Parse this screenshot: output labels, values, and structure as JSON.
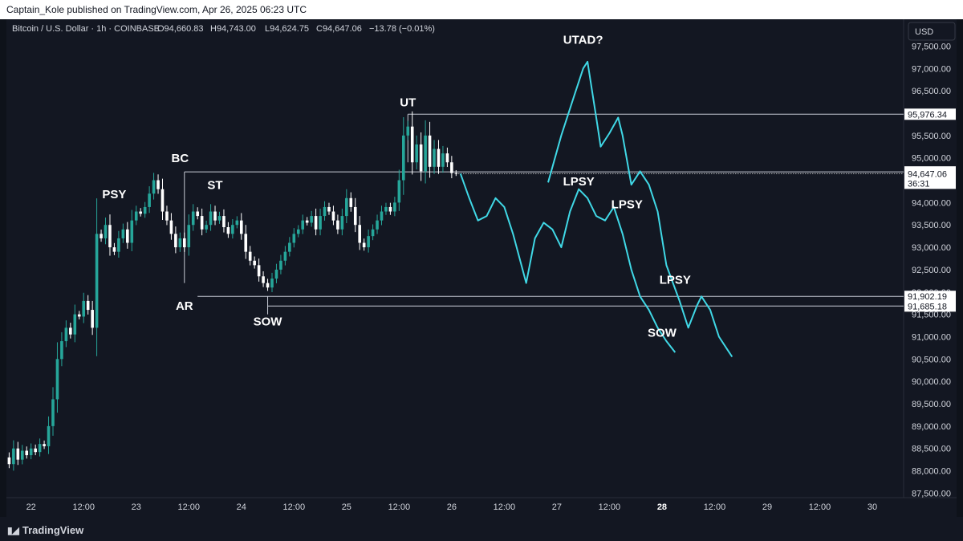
{
  "header": {
    "published": "Captain_Kole published on TradingView.com, Apr 26, 2025 06:23 UTC"
  },
  "legend": {
    "symbol": "Bitcoin / U.S. Dollar · 1h · COINBASE",
    "open": "O94,660.83",
    "high": "H94,743.00",
    "low": "L94,624.75",
    "close": "C94,647.06",
    "change": "−13.78 (−0.01%)"
  },
  "currency_button": "USD",
  "footer": {
    "brand": "TradingView",
    "logo_icon": "tradingview-logo-icon"
  },
  "colors": {
    "up": "#26a69a",
    "down": "#ffffff",
    "projection": "#40d8e6",
    "background": "#131722",
    "level_line": "#c8ccd6"
  },
  "chart_data": {
    "type": "candlestick",
    "ylim": [
      87400,
      98100
    ],
    "y_ticks": [
      87500,
      88000,
      88500,
      89000,
      89500,
      90000,
      90500,
      91000,
      91500,
      92000,
      92500,
      93000,
      93500,
      94000,
      94500,
      95000,
      95500,
      96000,
      96500,
      97000,
      97500
    ],
    "y_tick_labels": [
      "87,500.00",
      "88,000.00",
      "88,500.00",
      "89,000.00",
      "89,500.00",
      "90,000.00",
      "90,500.00",
      "91,000.00",
      "91,500.00",
      "92,000.00",
      "92,500.00",
      "93,000.00",
      "93,500.00",
      "94,000.00",
      "94,500.00",
      "95,000.00",
      "95,500.00",
      "96,000.00",
      "96,500.00",
      "97,000.00",
      "97,500.00"
    ],
    "x_ticks": [
      {
        "bar": 8,
        "label": "22",
        "bold": false
      },
      {
        "bar": 20,
        "label": "12:00",
        "bold": false
      },
      {
        "bar": 32,
        "label": "23",
        "bold": false
      },
      {
        "bar": 44,
        "label": "12:00",
        "bold": false
      },
      {
        "bar": 56,
        "label": "24",
        "bold": false
      },
      {
        "bar": 68,
        "label": "12:00",
        "bold": false
      },
      {
        "bar": 80,
        "label": "25",
        "bold": false
      },
      {
        "bar": 92,
        "label": "12:00",
        "bold": false
      },
      {
        "bar": 104,
        "label": "26",
        "bold": false
      },
      {
        "bar": 116,
        "label": "12:00",
        "bold": false
      },
      {
        "bar": 128,
        "label": "27",
        "bold": false
      },
      {
        "bar": 140,
        "label": "12:00",
        "bold": false
      },
      {
        "bar": 152,
        "label": "28",
        "bold": true
      },
      {
        "bar": 164,
        "label": "12:00",
        "bold": false
      },
      {
        "bar": 176,
        "label": "29",
        "bold": false
      },
      {
        "bar": 188,
        "label": "12:00",
        "bold": false
      },
      {
        "bar": 200,
        "label": "30",
        "bold": false
      }
    ],
    "close_path": [
      87450,
      87800,
      88300,
      88150,
      88500,
      88250,
      88450,
      88350,
      88500,
      88420,
      88600,
      88550,
      89000,
      89600,
      90500,
      90900,
      91200,
      91050,
      91500,
      91450,
      91800,
      91600,
      91200,
      93300,
      93200,
      93500,
      93000,
      92900,
      93200,
      93400,
      93100,
      93600,
      93800,
      93750,
      93900,
      94200,
      94500,
      94300,
      93800,
      93600,
      93300,
      93000,
      93200,
      93000,
      93500,
      93800,
      93700,
      93400,
      93500,
      93800,
      93600,
      93700,
      93450,
      93300,
      93500,
      93600,
      93300,
      92900,
      92700,
      92600,
      92350,
      92200,
      92100,
      92300,
      92500,
      92700,
      92900,
      93100,
      93300,
      93400,
      93600,
      93550,
      93700,
      93400,
      93700,
      93900,
      93800,
      93600,
      93400,
      93700,
      94100,
      93900,
      93500,
      93100,
      93000,
      93250,
      93400,
      93600,
      93800,
      93900,
      93800,
      94000,
      94500,
      95500,
      95700,
      94900,
      95300,
      94700,
      95500,
      94800,
      95200,
      94800,
      95100,
      94900,
      94660,
      94647
    ],
    "highlighted_bar": 32,
    "levels": [
      {
        "price": 95976.34,
        "label": "95,976.34",
        "from_bar": 94
      },
      {
        "price": 94686.0,
        "label": "94,686.00",
        "from_bar": 43
      },
      {
        "price": 91902.19,
        "label": "91,902.19",
        "from_bar": 46
      },
      {
        "price": 91685.18,
        "label": "91,685.18",
        "from_bar": 62
      }
    ],
    "price_tag": {
      "label": "94,647.06",
      "countdown": "36:31",
      "price": 94647.06
    },
    "projections": [
      {
        "name": "A",
        "points": [
          [
            106,
            94647
          ],
          [
            108,
            94100
          ],
          [
            110,
            93600
          ],
          [
            112,
            93700
          ],
          [
            114,
            94100
          ],
          [
            116,
            93900
          ],
          [
            118,
            93300
          ],
          [
            121,
            92200
          ],
          [
            123,
            93200
          ],
          [
            125,
            93550
          ],
          [
            127,
            93400
          ],
          [
            129,
            93000
          ],
          [
            131,
            93800
          ],
          [
            133,
            94300
          ],
          [
            135,
            94100
          ],
          [
            137,
            93700
          ],
          [
            139,
            93600
          ],
          [
            141,
            93900
          ],
          [
            143,
            93300
          ],
          [
            145,
            92500
          ],
          [
            147,
            91900
          ],
          [
            149,
            91600
          ],
          [
            151,
            91200
          ],
          [
            153,
            90900
          ],
          [
            155,
            90650
          ]
        ]
      },
      {
        "name": "B",
        "points": [
          [
            126,
            94450
          ],
          [
            129,
            95500
          ],
          [
            132,
            96400
          ],
          [
            134,
            97000
          ],
          [
            135,
            97150
          ],
          [
            137,
            95900
          ],
          [
            138,
            95250
          ],
          [
            140,
            95550
          ],
          [
            142,
            95900
          ],
          [
            143,
            95500
          ],
          [
            145,
            94400
          ],
          [
            147,
            94700
          ],
          [
            149,
            94400
          ],
          [
            151,
            93800
          ],
          [
            153,
            92600
          ],
          [
            156,
            91800
          ],
          [
            158,
            91200
          ],
          [
            160,
            91700
          ],
          [
            161,
            91900
          ],
          [
            163,
            91600
          ],
          [
            165,
            91000
          ],
          [
            167,
            90700
          ],
          [
            168,
            90550
          ]
        ]
      }
    ],
    "annotations": [
      {
        "text": "PSY",
        "bar": 27,
        "price": 94100
      },
      {
        "text": "BC",
        "bar": 42,
        "price": 94900
      },
      {
        "text": "ST",
        "bar": 50,
        "price": 94300
      },
      {
        "text": "AR",
        "bar": 43,
        "price": 91600
      },
      {
        "text": "SOW",
        "bar": 62,
        "price": 91250
      },
      {
        "text": "UT",
        "bar": 94,
        "price": 96150
      },
      {
        "text": "UTAD?",
        "bar": 134,
        "price": 97550
      },
      {
        "text": "LPSY",
        "bar": 133,
        "price": 94380
      },
      {
        "text": "LPSY",
        "bar": 144,
        "price": 93870
      },
      {
        "text": "LPSY",
        "bar": 155,
        "price": 92180
      },
      {
        "text": "SOW",
        "bar": 152,
        "price": 91000
      }
    ]
  }
}
